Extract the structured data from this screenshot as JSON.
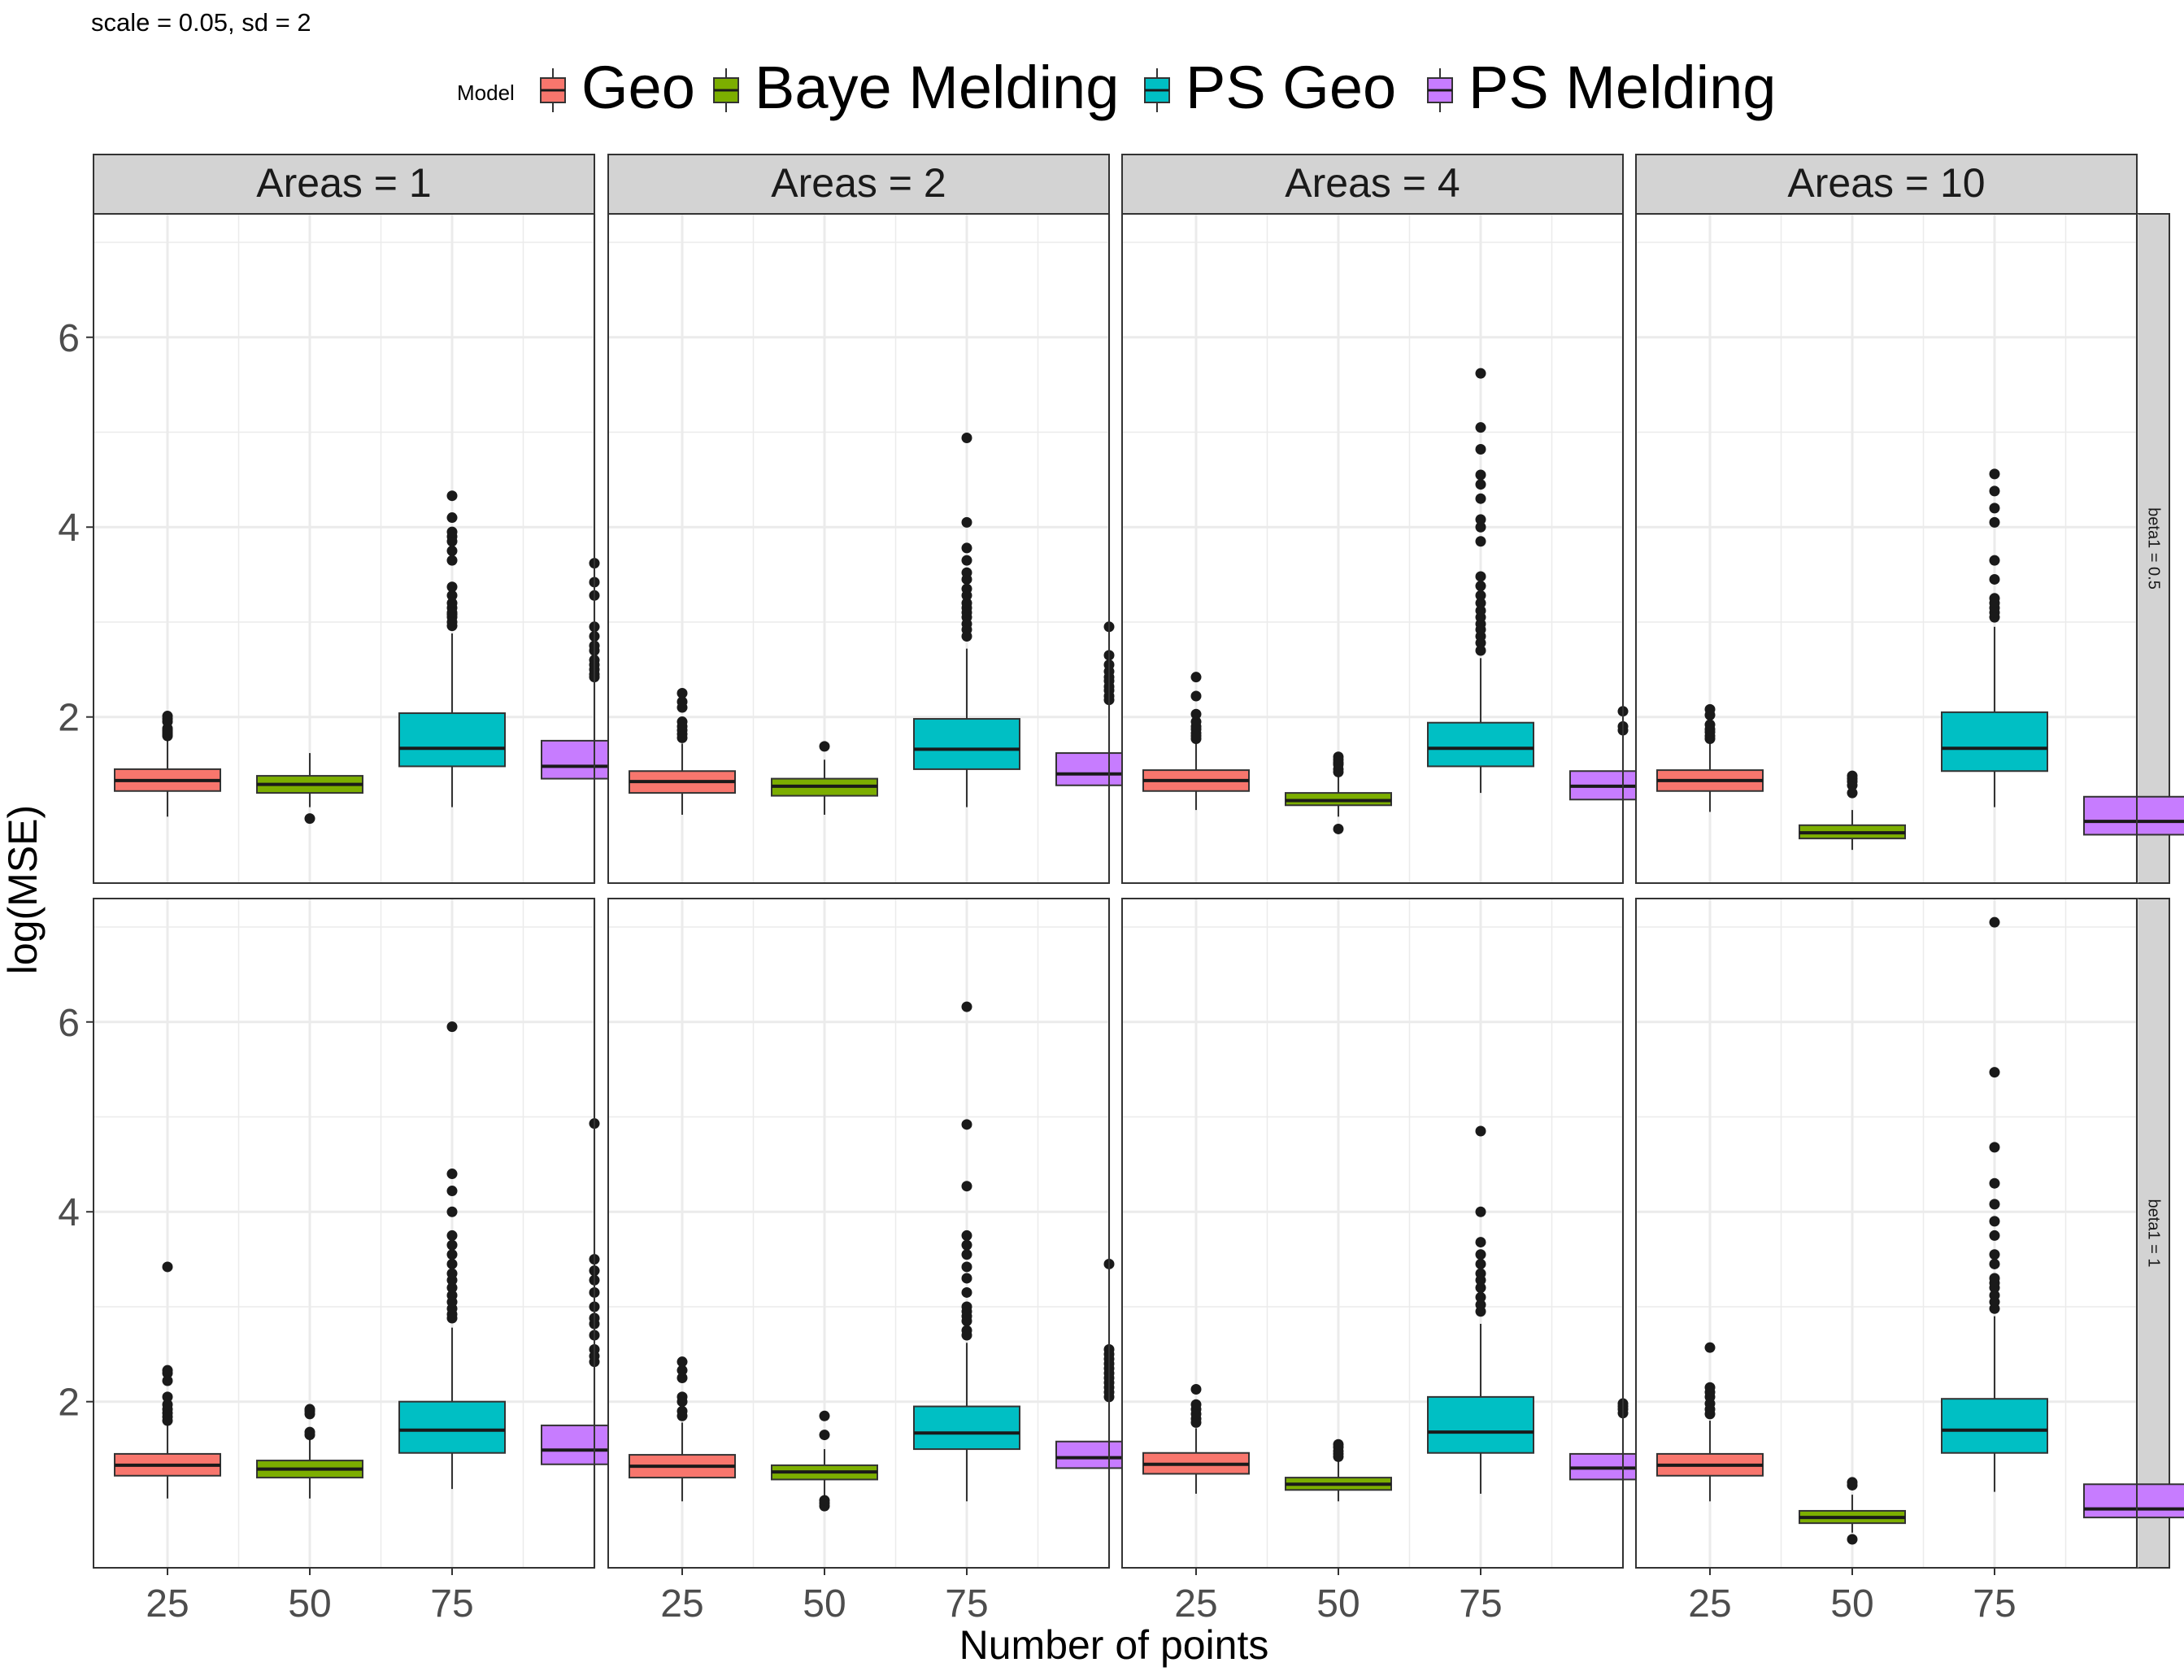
{
  "subtitle": "scale = 0.05, sd  = 2",
  "xlabel": "Number of points",
  "ylabel": "log(MSE)",
  "legend": {
    "title": "Model",
    "items": [
      {
        "label": "Geo",
        "color": "#F8766D"
      },
      {
        "label": "Baye Melding",
        "color": "#7CAE00"
      },
      {
        "label": "PS Geo",
        "color": "#00BFC4"
      },
      {
        "label": "PS Melding",
        "color": "#C77CFF"
      }
    ]
  },
  "colors": {
    "strip_bg": "#D3D3D3",
    "panel_border": "#333333",
    "grid": "#EBEBEB",
    "median": "#1a1a1a",
    "outlier": "#1a1a1a"
  },
  "chart_data": {
    "type": "boxplot",
    "facet_columns": [
      "Areas = 1",
      "Areas = 2",
      "Areas = 4",
      "Areas = 10"
    ],
    "facet_rows": [
      "beta1 = 0.5",
      "beta1 = 1"
    ],
    "x_ticks": [
      "25",
      "50",
      "75"
    ],
    "x_tick_values": [
      25,
      50,
      75
    ],
    "xlim": [
      12,
      100
    ],
    "x_positions": [
      25,
      50,
      75,
      100
    ],
    "y_ticks": [
      2,
      4,
      6
    ],
    "ylim": [
      0.25,
      7.3
    ],
    "grid": true,
    "legend_position": "top",
    "series_names": [
      "Geo",
      "Baye Melding",
      "PS Geo",
      "PS Melding"
    ],
    "panels": [
      {
        "row": 0,
        "col": 0,
        "boxes": [
          {
            "series": "Geo",
            "x": 25,
            "lower_whisker": 0.95,
            "q1": 1.22,
            "median": 1.33,
            "q3": 1.45,
            "upper_whisker": 1.75,
            "outliers": [
              1.8,
              1.82,
              1.84,
              1.86,
              1.88,
              1.95,
              1.98,
              2.01
            ]
          },
          {
            "series": "Baye Melding",
            "x": 50,
            "lower_whisker": 1.05,
            "q1": 1.2,
            "median": 1.29,
            "q3": 1.38,
            "upper_whisker": 1.62,
            "outliers": [
              0.93
            ]
          },
          {
            "series": "PS Geo",
            "x": 75,
            "lower_whisker": 1.05,
            "q1": 1.48,
            "median": 1.67,
            "q3": 2.04,
            "upper_whisker": 2.88,
            "outliers": [
              2.96,
              3.0,
              3.05,
              3.08,
              3.1,
              3.15,
              3.2,
              3.28,
              3.37,
              3.65,
              3.75,
              3.85,
              3.9,
              3.95,
              4.1,
              4.33
            ]
          },
          {
            "series": "PS Melding",
            "x": 100,
            "lower_whisker": 1.05,
            "q1": 1.35,
            "median": 1.48,
            "q3": 1.75,
            "upper_whisker": 2.35,
            "outliers": [
              2.42,
              2.45,
              2.5,
              2.55,
              2.6,
              2.7,
              2.75,
              2.85,
              2.95,
              3.28,
              3.42,
              3.62
            ]
          }
        ]
      },
      {
        "row": 0,
        "col": 1,
        "boxes": [
          {
            "series": "Geo",
            "x": 25,
            "lower_whisker": 0.97,
            "q1": 1.2,
            "median": 1.32,
            "q3": 1.43,
            "upper_whisker": 1.72,
            "outliers": [
              1.78,
              1.82,
              1.86,
              1.9,
              1.95,
              2.1,
              2.16,
              2.25
            ]
          },
          {
            "series": "Baye Melding",
            "x": 50,
            "lower_whisker": 0.97,
            "q1": 1.17,
            "median": 1.27,
            "q3": 1.35,
            "upper_whisker": 1.55,
            "outliers": [
              1.69
            ]
          },
          {
            "series": "PS Geo",
            "x": 75,
            "lower_whisker": 1.05,
            "q1": 1.45,
            "median": 1.66,
            "q3": 1.98,
            "upper_whisker": 2.72,
            "outliers": [
              2.85,
              2.92,
              2.98,
              3.05,
              3.1,
              3.15,
              3.2,
              3.28,
              3.35,
              3.45,
              3.52,
              3.65,
              3.78,
              4.05,
              4.94
            ]
          },
          {
            "series": "PS Melding",
            "x": 100,
            "lower_whisker": 1.08,
            "q1": 1.28,
            "median": 1.4,
            "q3": 1.62,
            "upper_whisker": 2.1,
            "outliers": [
              2.18,
              2.22,
              2.28,
              2.32,
              2.38,
              2.42,
              2.48,
              2.55,
              2.65,
              2.95
            ]
          }
        ]
      },
      {
        "row": 0,
        "col": 2,
        "boxes": [
          {
            "series": "Geo",
            "x": 25,
            "lower_whisker": 1.02,
            "q1": 1.22,
            "median": 1.33,
            "q3": 1.44,
            "upper_whisker": 1.72,
            "outliers": [
              1.77,
              1.8,
              1.83,
              1.87,
              1.9,
              1.95,
              2.03,
              2.22,
              2.42
            ]
          },
          {
            "series": "Baye Melding",
            "x": 50,
            "lower_whisker": 0.95,
            "q1": 1.07,
            "median": 1.12,
            "q3": 1.2,
            "upper_whisker": 1.38,
            "outliers": [
              1.42,
              1.45,
              1.5,
              1.52,
              1.55,
              1.58,
              0.82
            ]
          },
          {
            "series": "PS Geo",
            "x": 75,
            "lower_whisker": 1.2,
            "q1": 1.48,
            "median": 1.67,
            "q3": 1.94,
            "upper_whisker": 2.62,
            "outliers": [
              2.7,
              2.78,
              2.85,
              2.92,
              2.98,
              3.05,
              3.12,
              3.2,
              3.28,
              3.38,
              3.48,
              3.85,
              4.0,
              4.08,
              4.3,
              4.45,
              4.55,
              4.82,
              5.05,
              5.62
            ]
          },
          {
            "series": "PS Melding",
            "x": 100,
            "lower_whisker": 0.95,
            "q1": 1.13,
            "median": 1.27,
            "q3": 1.43,
            "upper_whisker": 1.8,
            "outliers": [
              1.86,
              1.9,
              2.06
            ]
          }
        ]
      },
      {
        "row": 0,
        "col": 3,
        "boxes": [
          {
            "series": "Geo",
            "x": 25,
            "lower_whisker": 1.0,
            "q1": 1.22,
            "median": 1.33,
            "q3": 1.44,
            "upper_whisker": 1.72,
            "outliers": [
              1.77,
              1.8,
              1.84,
              1.87,
              1.92,
              2.02,
              2.08
            ]
          },
          {
            "series": "Baye Melding",
            "x": 50,
            "lower_whisker": 0.6,
            "q1": 0.72,
            "median": 0.78,
            "q3": 0.86,
            "upper_whisker": 1.02,
            "outliers": [
              1.2,
              1.28,
              1.32,
              1.35,
              1.38
            ]
          },
          {
            "series": "PS Geo",
            "x": 75,
            "lower_whisker": 1.05,
            "q1": 1.43,
            "median": 1.67,
            "q3": 2.05,
            "upper_whisker": 2.95,
            "outliers": [
              3.05,
              3.1,
              3.15,
              3.2,
              3.25,
              3.45,
              3.65,
              4.05,
              4.2,
              4.38,
              4.56
            ]
          },
          {
            "series": "PS Melding",
            "x": 100,
            "lower_whisker": 0.6,
            "q1": 0.76,
            "median": 0.9,
            "q3": 1.16,
            "upper_whisker": 1.7,
            "outliers": []
          }
        ]
      },
      {
        "row": 1,
        "col": 0,
        "boxes": [
          {
            "series": "Geo",
            "x": 25,
            "lower_whisker": 0.98,
            "q1": 1.22,
            "median": 1.33,
            "q3": 1.45,
            "upper_whisker": 1.75,
            "outliers": [
              1.8,
              1.84,
              1.88,
              1.92,
              1.97,
              2.05,
              2.22,
              2.3,
              2.33,
              3.42
            ]
          },
          {
            "series": "Baye Melding",
            "x": 50,
            "lower_whisker": 0.98,
            "q1": 1.2,
            "median": 1.29,
            "q3": 1.38,
            "upper_whisker": 1.6,
            "outliers": [
              1.65,
              1.68,
              1.87,
              1.9,
              1.92
            ]
          },
          {
            "series": "PS Geo",
            "x": 75,
            "lower_whisker": 1.08,
            "q1": 1.46,
            "median": 1.7,
            "q3": 2.0,
            "upper_whisker": 2.78,
            "outliers": [
              2.88,
              2.92,
              2.98,
              3.05,
              3.12,
              3.2,
              3.28,
              3.35,
              3.45,
              3.55,
              3.65,
              3.75,
              4.0,
              4.22,
              4.4,
              5.95
            ]
          },
          {
            "series": "PS Melding",
            "x": 100,
            "lower_whisker": 1.08,
            "q1": 1.34,
            "median": 1.49,
            "q3": 1.75,
            "upper_whisker": 2.35,
            "outliers": [
              2.42,
              2.48,
              2.55,
              2.7,
              2.82,
              2.88,
              3.0,
              3.15,
              3.28,
              3.38,
              3.5,
              4.93
            ]
          }
        ]
      },
      {
        "row": 1,
        "col": 1,
        "boxes": [
          {
            "series": "Geo",
            "x": 25,
            "lower_whisker": 0.95,
            "q1": 1.2,
            "median": 1.32,
            "q3": 1.44,
            "upper_whisker": 1.78,
            "outliers": [
              1.85,
              1.9,
              2.0,
              2.05,
              2.25,
              2.33,
              2.42
            ]
          },
          {
            "series": "Baye Melding",
            "x": 50,
            "lower_whisker": 1.0,
            "q1": 1.18,
            "median": 1.26,
            "q3": 1.33,
            "upper_whisker": 1.5,
            "outliers": [
              0.9,
              0.93,
              0.96,
              1.65,
              1.85
            ]
          },
          {
            "series": "PS Geo",
            "x": 75,
            "lower_whisker": 0.95,
            "q1": 1.5,
            "median": 1.67,
            "q3": 1.95,
            "upper_whisker": 2.62,
            "outliers": [
              2.7,
              2.75,
              2.85,
              2.9,
              2.95,
              3.0,
              3.15,
              3.3,
              3.42,
              3.55,
              3.65,
              3.75,
              4.27,
              4.92,
              6.16
            ]
          },
          {
            "series": "PS Melding",
            "x": 100,
            "lower_whisker": 0.95,
            "q1": 1.3,
            "median": 1.41,
            "q3": 1.58,
            "upper_whisker": 2.0,
            "outliers": [
              2.05,
              2.1,
              2.15,
              2.2,
              2.25,
              2.3,
              2.35,
              2.4,
              2.45,
              2.5,
              2.55,
              3.45
            ]
          }
        ]
      },
      {
        "row": 1,
        "col": 2,
        "boxes": [
          {
            "series": "Geo",
            "x": 25,
            "lower_whisker": 1.03,
            "q1": 1.24,
            "median": 1.34,
            "q3": 1.46,
            "upper_whisker": 1.72,
            "outliers": [
              1.78,
              1.82,
              1.87,
              1.92,
              1.97,
              2.13
            ]
          },
          {
            "series": "Baye Melding",
            "x": 50,
            "lower_whisker": 0.95,
            "q1": 1.07,
            "median": 1.13,
            "q3": 1.2,
            "upper_whisker": 1.38,
            "outliers": [
              1.42,
              1.45,
              1.48,
              1.52,
              1.55
            ]
          },
          {
            "series": "PS Geo",
            "x": 75,
            "lower_whisker": 1.03,
            "q1": 1.46,
            "median": 1.68,
            "q3": 2.05,
            "upper_whisker": 2.82,
            "outliers": [
              2.95,
              3.02,
              3.1,
              3.2,
              3.28,
              3.35,
              3.45,
              3.55,
              3.68,
              4.0,
              4.85
            ]
          },
          {
            "series": "PS Melding",
            "x": 100,
            "lower_whisker": 0.95,
            "q1": 1.18,
            "median": 1.3,
            "q3": 1.45,
            "upper_whisker": 1.85,
            "outliers": [
              1.88,
              1.92,
              1.95,
              1.98
            ]
          }
        ]
      },
      {
        "row": 1,
        "col": 3,
        "boxes": [
          {
            "series": "Geo",
            "x": 25,
            "lower_whisker": 0.95,
            "q1": 1.22,
            "median": 1.33,
            "q3": 1.45,
            "upper_whisker": 1.8,
            "outliers": [
              1.87,
              1.92,
              1.98,
              2.05,
              2.1,
              2.15,
              2.57
            ]
          },
          {
            "series": "Baye Melding",
            "x": 50,
            "lower_whisker": 0.62,
            "q1": 0.72,
            "median": 0.78,
            "q3": 0.85,
            "upper_whisker": 1.02,
            "outliers": [
              0.55,
              1.12,
              1.15
            ]
          },
          {
            "series": "PS Geo",
            "x": 75,
            "lower_whisker": 1.05,
            "q1": 1.46,
            "median": 1.7,
            "q3": 2.03,
            "upper_whisker": 2.9,
            "outliers": [
              2.98,
              3.05,
              3.12,
              3.2,
              3.25,
              3.3,
              3.45,
              3.55,
              3.75,
              3.9,
              4.08,
              4.3,
              4.68,
              5.47,
              7.05
            ]
          },
          {
            "series": "PS Melding",
            "x": 100,
            "lower_whisker": 0.57,
            "q1": 0.78,
            "median": 0.87,
            "q3": 1.13,
            "upper_whisker": 1.65,
            "outliers": []
          }
        ]
      }
    ]
  }
}
